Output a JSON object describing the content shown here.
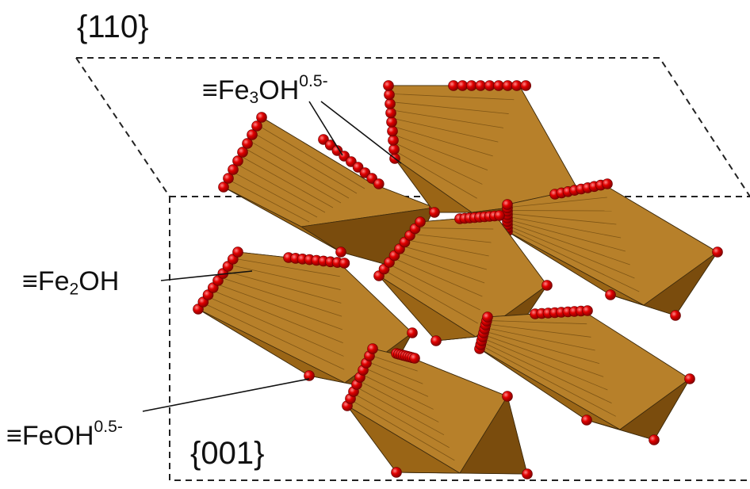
{
  "figure": {
    "face_110_label": "{110}",
    "face_001_label": "{001}",
    "site_labels": {
      "fe3oh": {
        "prefix": "≡Fe",
        "subscript": "3",
        "base": "OH",
        "superscript": "0.5-"
      },
      "fe2oh": {
        "prefix": "≡Fe",
        "subscript": "2",
        "base": "OH",
        "superscript": ""
      },
      "feoh": {
        "prefix": "≡FeOH",
        "subscript": "",
        "base": "",
        "superscript": "0.5-"
      }
    },
    "colors": {
      "octahedron_face_light": "#b7802a",
      "octahedron_face_mid": "#9a6516",
      "octahedron_face_dark": "#7a4c0d",
      "oxygen_atom": "#e00000",
      "dashed_outline": "#222222"
    }
  }
}
